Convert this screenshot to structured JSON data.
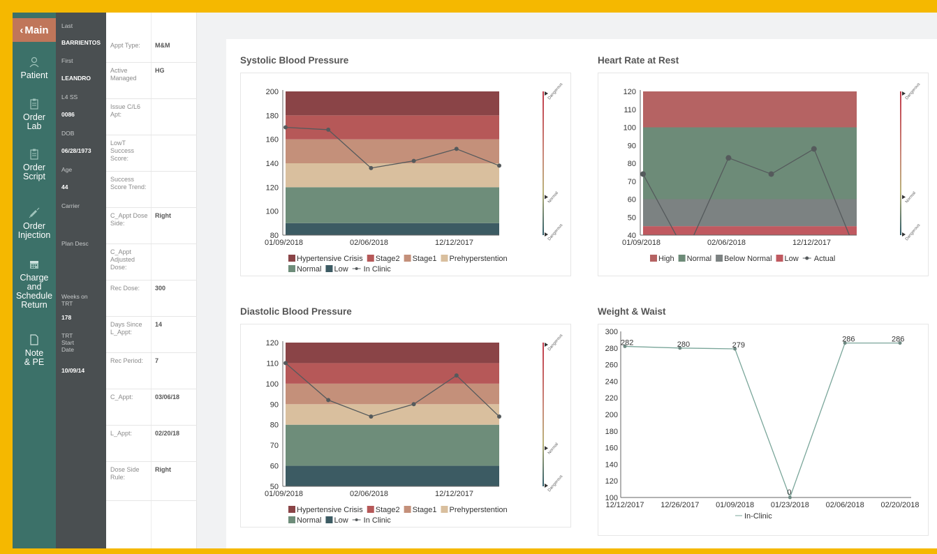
{
  "nav": {
    "main_label": "Main",
    "items": [
      {
        "label": "Patient",
        "icon": "user-icon"
      },
      {
        "label": "Order Lab",
        "icon": "clipboard-icon"
      },
      {
        "label": "Order Script",
        "icon": "clipboard-icon"
      },
      {
        "label": "Order Injection",
        "icon": "syringe-icon"
      },
      {
        "label": "Charge and Schedule Return",
        "icon": "calendar-icon"
      },
      {
        "label": "Note & PE",
        "icon": "document-icon"
      }
    ]
  },
  "patient": {
    "last_label": "Last",
    "last_value": "BARRIENTOS",
    "first_label": "First",
    "first_value": "LEANDRO",
    "ssn_label": "L4 SS",
    "ssn_value": "0086",
    "dob_label": "DOB",
    "dob_value": "06/28/1973",
    "age_label": "Age",
    "age_value": "44",
    "carrier_label": "Carrier",
    "plan_label": "Plan Desc",
    "weeks_label": "Weeks on TRT",
    "weeks_value": "178",
    "trt_start_label": "TRT Start Date",
    "trt_start_value": "10/09/14"
  },
  "appointment": {
    "rows": [
      {
        "label": "Appt Type:",
        "value": "M&M"
      },
      {
        "label": "Active Managed",
        "value": "HG"
      },
      {
        "label": "Issue C/L6 Apt:",
        "value": ""
      },
      {
        "label": "LowT Success Score:",
        "value": ""
      },
      {
        "label": "Success Score Trend:",
        "value": ""
      },
      {
        "label": "C_Appt Dose Side:",
        "value": "Right"
      },
      {
        "label": "C_Appt Adjusted Dose:",
        "value": ""
      },
      {
        "label": "Rec Dose:",
        "value": "300"
      },
      {
        "label": "Days Since L_Appt:",
        "value": "14"
      },
      {
        "label": "Rec Period:",
        "value": "7"
      },
      {
        "label": "C_Appt:",
        "value": "03/06/18"
      },
      {
        "label": "L_Appt:",
        "value": "02/20/18"
      },
      {
        "label": "Dose Side Rule:",
        "value": "Right"
      }
    ]
  },
  "colors": {
    "crisis": "#8a4447",
    "stage2": "#b65858",
    "stage1": "#c4907a",
    "prehyper": "#d9bf9e",
    "normal": "#6e8d7a",
    "low": "#3c5b63",
    "hr_high": "#b56363",
    "hr_normal": "#6d8b78",
    "hr_below": "#7c8282",
    "hr_low": "#c05960",
    "line": "#555a5c",
    "weight_line": "#7aa69a"
  },
  "charts": {
    "systolic": {
      "title": "Systolic Blood Pressure",
      "gauge": {
        "top": "Dangerous",
        "mid": "Normal",
        "bottom": "Dangerous"
      },
      "legend": [
        "Hypertensive Crisis",
        "Stage2",
        "Stage1",
        "Prehyperstention",
        "Normal",
        "Low",
        "In Clinic"
      ]
    },
    "heart_rate": {
      "title": "Heart Rate at Rest",
      "gauge": {
        "top": "Dangerous",
        "mid": "Normal",
        "bottom": "Dangerous"
      },
      "legend": [
        "High",
        "Normal",
        "Below Normal",
        "Low",
        "Actual"
      ]
    },
    "diastolic": {
      "title": "Diastolic Blood Pressure",
      "gauge": {
        "top": "Dangerous",
        "mid": "Normal",
        "bottom": "Dangerous"
      },
      "legend": [
        "Hypertensive Crisis",
        "Stage2",
        "Stage1",
        "Prehyperstention",
        "Normal",
        "Low",
        "In Clinic"
      ]
    },
    "weight": {
      "title": "Weight & Waist",
      "legend": [
        "In-Clinic"
      ]
    }
  },
  "chart_data": [
    {
      "type": "line",
      "title": "Systolic Blood Pressure",
      "x_tick_labels": [
        "01/09/2018",
        "02/06/2018",
        "12/12/2017"
      ],
      "ylim": [
        80,
        200
      ],
      "y_ticks": [
        80,
        100,
        120,
        140,
        160,
        180,
        200
      ],
      "bands": [
        {
          "name": "Low",
          "range": [
            80,
            90
          ]
        },
        {
          "name": "Normal",
          "range": [
            90,
            120
          ]
        },
        {
          "name": "Prehyperstention",
          "range": [
            120,
            140
          ]
        },
        {
          "name": "Stage1",
          "range": [
            140,
            160
          ]
        },
        {
          "name": "Stage2",
          "range": [
            160,
            180
          ]
        },
        {
          "name": "Hypertensive Crisis",
          "range": [
            180,
            200
          ]
        }
      ],
      "series": [
        {
          "name": "In Clinic",
          "values": [
            170,
            168,
            136,
            142,
            152,
            138
          ]
        }
      ]
    },
    {
      "type": "line",
      "title": "Heart Rate at Rest",
      "x_tick_labels": [
        "01/09/2018",
        "02/06/2018",
        "12/12/2017"
      ],
      "ylim": [
        40,
        120
      ],
      "y_ticks": [
        40,
        50,
        60,
        70,
        80,
        90,
        100,
        110,
        120
      ],
      "bands": [
        {
          "name": "Low",
          "range": [
            40,
            45
          ]
        },
        {
          "name": "Below Normal",
          "range": [
            45,
            60
          ]
        },
        {
          "name": "Normal",
          "range": [
            60,
            100
          ]
        },
        {
          "name": "High",
          "range": [
            100,
            120
          ]
        }
      ],
      "series": [
        {
          "name": "Actual",
          "values": [
            74,
            30,
            83,
            74,
            88,
            30
          ]
        }
      ]
    },
    {
      "type": "line",
      "title": "Diastolic Blood Pressure",
      "x_tick_labels": [
        "01/09/2018",
        "02/06/2018",
        "12/12/2017"
      ],
      "ylim": [
        50,
        120
      ],
      "y_ticks": [
        50,
        60,
        70,
        80,
        90,
        100,
        110,
        120
      ],
      "bands": [
        {
          "name": "Low",
          "range": [
            50,
            60
          ]
        },
        {
          "name": "Normal",
          "range": [
            60,
            80
          ]
        },
        {
          "name": "Prehyperstention",
          "range": [
            80,
            90
          ]
        },
        {
          "name": "Stage1",
          "range": [
            90,
            100
          ]
        },
        {
          "name": "Stage2",
          "range": [
            100,
            110
          ]
        },
        {
          "name": "Hypertensive Crisis",
          "range": [
            110,
            120
          ]
        }
      ],
      "series": [
        {
          "name": "In Clinic",
          "values": [
            110,
            92,
            84,
            90,
            104,
            84
          ]
        }
      ]
    },
    {
      "type": "line",
      "title": "Weight & Waist",
      "categories": [
        "12/12/2017",
        "12/26/2017",
        "01/09/2018",
        "01/23/2018",
        "02/06/2018",
        "02/20/2018"
      ],
      "ylim": [
        100,
        300
      ],
      "y_ticks": [
        100,
        120,
        140,
        160,
        180,
        200,
        220,
        240,
        260,
        280,
        300
      ],
      "series": [
        {
          "name": "In-Clinic",
          "values": [
            282,
            280,
            279,
            0,
            286,
            286
          ]
        }
      ]
    }
  ]
}
